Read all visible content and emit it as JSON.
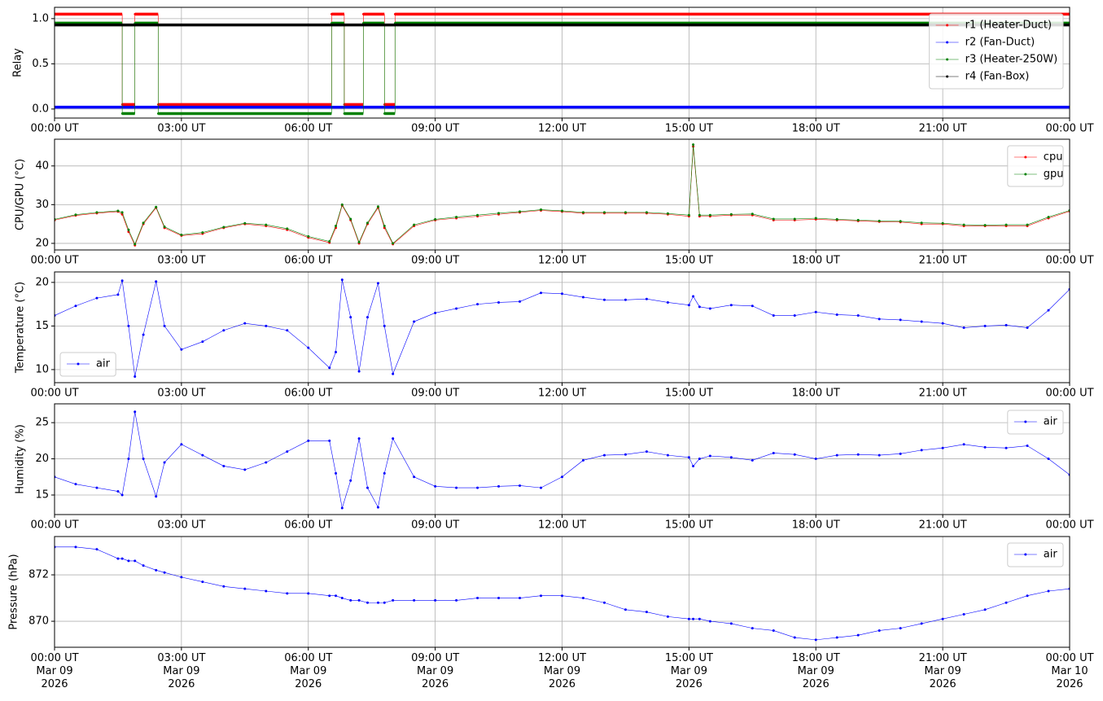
{
  "chart_data": [
    {
      "type": "step",
      "ylabel": "Relay",
      "legend": "upper right",
      "grid": true,
      "xlim": [
        0,
        24
      ],
      "ylim": [
        -0.1,
        1.125
      ],
      "yticks": [
        {
          "value": 0,
          "label": "0.0"
        },
        {
          "value": 0.5,
          "label": "0.5"
        },
        {
          "value": 1,
          "label": "1.0"
        }
      ],
      "xticks": [
        {
          "value": 0,
          "label": "00:00 UT"
        },
        {
          "value": 3,
          "label": "03:00 UT"
        },
        {
          "value": 6,
          "label": "06:00 UT"
        },
        {
          "value": 9,
          "label": "09:00 UT"
        },
        {
          "value": 12,
          "label": "12:00 UT"
        },
        {
          "value": 15,
          "label": "15:00 UT"
        },
        {
          "value": 18,
          "label": "18:00 UT"
        },
        {
          "value": 21,
          "label": "21:00 UT"
        },
        {
          "value": 24,
          "label": "00:00 UT"
        }
      ],
      "x": [
        0,
        1.6,
        1.9,
        2.45,
        6.55,
        6.85,
        7.3,
        7.8,
        8.05,
        24
      ],
      "series": [
        {
          "name": "r1 (Heater-Duct)",
          "color": "#ff0000",
          "values": [
            1.05,
            0.05,
            1.05,
            0.05,
            1.05,
            0.05,
            1.05,
            0.05,
            1.05,
            1.05
          ]
        },
        {
          "name": "r2 (Fan-Duct)",
          "color": "#0000ff",
          "values": [
            0.02,
            0.02,
            0.02,
            0.02,
            0.02,
            0.02,
            0.02,
            0.02,
            0.02,
            0.02
          ]
        },
        {
          "name": "r3 (Heater-250W)",
          "color": "#008000",
          "values": [
            0.95,
            -0.05,
            0.95,
            -0.05,
            0.95,
            -0.05,
            0.95,
            -0.05,
            0.95,
            0.95
          ]
        },
        {
          "name": "r4 (Fan-Box)",
          "color": "#000000",
          "values": [
            0.93,
            0.93,
            0.93,
            0.93,
            0.93,
            0.93,
            0.93,
            0.93,
            0.93,
            0.93
          ]
        }
      ]
    },
    {
      "type": "line",
      "ylabel": "CPU/GPU (°C)",
      "legend": "upper right",
      "grid": true,
      "xlim": [
        0,
        24
      ],
      "ylim": [
        18.3,
        46.9
      ],
      "yticks": [
        20,
        30,
        40
      ],
      "xticks": [
        {
          "value": 0,
          "label": "00:00 UT"
        },
        {
          "value": 3,
          "label": "03:00 UT"
        },
        {
          "value": 6,
          "label": "06:00 UT"
        },
        {
          "value": 9,
          "label": "09:00 UT"
        },
        {
          "value": 12,
          "label": "12:00 UT"
        },
        {
          "value": 15,
          "label": "15:00 UT"
        },
        {
          "value": 18,
          "label": "18:00 UT"
        },
        {
          "value": 21,
          "label": "21:00 UT"
        },
        {
          "value": 24,
          "label": "00:00 UT"
        }
      ],
      "x": [
        0,
        0.5,
        1,
        1.5,
        1.6,
        1.75,
        1.9,
        2.1,
        2.4,
        2.6,
        3,
        3.5,
        4,
        4.5,
        5,
        5.5,
        6,
        6.5,
        6.65,
        6.8,
        7,
        7.2,
        7.4,
        7.65,
        7.8,
        8,
        8.5,
        9,
        9.5,
        10,
        10.5,
        11,
        11.5,
        12,
        12.5,
        13,
        13.5,
        14,
        14.5,
        15,
        15.1,
        15.25,
        15.5,
        16,
        16.5,
        17,
        17.5,
        18,
        18.5,
        19,
        19.5,
        20,
        20.5,
        21,
        21.5,
        22,
        22.5,
        23,
        23.5,
        24
      ],
      "series": [
        {
          "name": "cpu",
          "color": "#ff0000",
          "values": [
            26,
            27.2,
            27.8,
            28.2,
            27.5,
            23,
            19.5,
            25,
            29.2,
            24,
            22,
            22.5,
            24,
            25,
            24.5,
            23.5,
            21.5,
            20.2,
            24,
            29.8,
            26,
            20,
            25,
            29.2,
            24,
            19.8,
            24.5,
            26,
            26.5,
            27,
            27.5,
            28,
            28.5,
            28.2,
            27.8,
            27.8,
            27.8,
            27.8,
            27.5,
            27,
            45,
            27,
            27,
            27.3,
            27.3,
            26,
            26,
            26.2,
            26,
            25.8,
            25.6,
            25.5,
            25,
            25,
            24.5,
            24.5,
            24.5,
            24.5,
            26.5,
            28.3
          ]
        },
        {
          "name": "gpu",
          "color": "#008000",
          "values": [
            26.2,
            27.4,
            28,
            28.4,
            28,
            23.5,
            19.8,
            25.3,
            29.4,
            24.3,
            22.2,
            22.8,
            24.2,
            25.2,
            24.8,
            23.8,
            21.8,
            20.5,
            24.5,
            30,
            26.3,
            20.3,
            25.3,
            29.5,
            24.5,
            20,
            24.8,
            26.2,
            26.8,
            27.3,
            27.8,
            28.2,
            28.7,
            28.4,
            28,
            28,
            28,
            28,
            27.7,
            27.3,
            45.5,
            27.3,
            27.3,
            27.5,
            27.6,
            26.3,
            26.3,
            26.5,
            26.2,
            26,
            25.8,
            25.7,
            25.3,
            25.2,
            24.8,
            24.7,
            24.8,
            24.8,
            26.8,
            28.5
          ]
        }
      ]
    },
    {
      "type": "line",
      "ylabel": "Temperature (°C)",
      "legend": "lower left",
      "grid": true,
      "xlim": [
        0,
        24
      ],
      "ylim": [
        8.5,
        21.2
      ],
      "yticks": [
        10,
        15,
        20
      ],
      "xticks": [
        {
          "value": 0,
          "label": "00:00 UT"
        },
        {
          "value": 3,
          "label": "03:00 UT"
        },
        {
          "value": 6,
          "label": "06:00 UT"
        },
        {
          "value": 9,
          "label": "09:00 UT"
        },
        {
          "value": 12,
          "label": "12:00 UT"
        },
        {
          "value": 15,
          "label": "15:00 UT"
        },
        {
          "value": 18,
          "label": "18:00 UT"
        },
        {
          "value": 21,
          "label": "21:00 UT"
        },
        {
          "value": 24,
          "label": "00:00 UT"
        }
      ],
      "x": [
        0,
        0.5,
        1,
        1.5,
        1.6,
        1.75,
        1.9,
        2.1,
        2.4,
        2.6,
        3,
        3.5,
        4,
        4.5,
        5,
        5.5,
        6,
        6.5,
        6.65,
        6.8,
        7,
        7.2,
        7.4,
        7.65,
        7.8,
        8,
        8.5,
        9,
        9.5,
        10,
        10.5,
        11,
        11.5,
        12,
        12.5,
        13,
        13.5,
        14,
        14.5,
        15,
        15.1,
        15.25,
        15.5,
        16,
        16.5,
        17,
        17.5,
        18,
        18.5,
        19,
        19.5,
        20,
        20.5,
        21,
        21.5,
        22,
        22.5,
        23,
        23.5,
        24
      ],
      "series": [
        {
          "name": "air",
          "color": "#0000ff",
          "values": [
            16.2,
            17.3,
            18.2,
            18.6,
            20.2,
            15,
            9.2,
            14,
            20.1,
            15,
            12.3,
            13.2,
            14.5,
            15.3,
            15,
            14.5,
            12.5,
            10.2,
            12,
            20.3,
            16,
            9.8,
            16,
            19.9,
            15,
            9.5,
            15.5,
            16.5,
            17,
            17.5,
            17.7,
            17.8,
            18.8,
            18.7,
            18.3,
            18,
            18,
            18.1,
            17.7,
            17.4,
            18.4,
            17.2,
            17,
            17.4,
            17.3,
            16.2,
            16.2,
            16.6,
            16.3,
            16.2,
            15.8,
            15.7,
            15.5,
            15.3,
            14.8,
            15,
            15.1,
            14.8,
            16.8,
            19.2
          ]
        }
      ]
    },
    {
      "type": "line",
      "ylabel": "Humidity (%)",
      "legend": "upper right",
      "grid": true,
      "xlim": [
        0,
        24
      ],
      "ylim": [
        12.3,
        27.6
      ],
      "yticks": [
        15,
        20,
        25
      ],
      "xticks": [
        {
          "value": 0,
          "label": "00:00 UT"
        },
        {
          "value": 3,
          "label": "03:00 UT"
        },
        {
          "value": 6,
          "label": "06:00 UT"
        },
        {
          "value": 9,
          "label": "09:00 UT"
        },
        {
          "value": 12,
          "label": "12:00 UT"
        },
        {
          "value": 15,
          "label": "15:00 UT"
        },
        {
          "value": 18,
          "label": "18:00 UT"
        },
        {
          "value": 21,
          "label": "21:00 UT"
        },
        {
          "value": 24,
          "label": "00:00 UT"
        }
      ],
      "x": [
        0,
        0.5,
        1,
        1.5,
        1.6,
        1.75,
        1.9,
        2.1,
        2.4,
        2.6,
        3,
        3.5,
        4,
        4.5,
        5,
        5.5,
        6,
        6.5,
        6.65,
        6.8,
        7,
        7.2,
        7.4,
        7.65,
        7.8,
        8,
        8.5,
        9,
        9.5,
        10,
        10.5,
        11,
        11.5,
        12,
        12.5,
        13,
        13.5,
        14,
        14.5,
        15,
        15.1,
        15.25,
        15.5,
        16,
        16.5,
        17,
        17.5,
        18,
        18.5,
        19,
        19.5,
        20,
        20.5,
        21,
        21.5,
        22,
        22.5,
        23,
        23.5,
        24
      ],
      "series": [
        {
          "name": "air",
          "color": "#0000ff",
          "values": [
            17.5,
            16.5,
            16,
            15.5,
            15,
            20,
            26.5,
            20,
            14.8,
            19.5,
            22,
            20.5,
            19,
            18.5,
            19.5,
            21,
            22.5,
            22.5,
            18,
            13.2,
            17,
            22.8,
            16,
            13.3,
            18,
            22.8,
            17.5,
            16.2,
            16,
            16,
            16.2,
            16.3,
            16,
            17.5,
            19.8,
            20.5,
            20.6,
            21,
            20.5,
            20.2,
            19,
            20,
            20.4,
            20.2,
            19.8,
            20.8,
            20.6,
            20,
            20.5,
            20.6,
            20.5,
            20.7,
            21.2,
            21.5,
            22,
            21.6,
            21.5,
            21.8,
            20,
            17.8
          ]
        }
      ]
    },
    {
      "type": "line",
      "ylabel": "Pressure (hPa)",
      "legend": "upper right",
      "grid": true,
      "xlim": [
        0,
        24
      ],
      "ylim": [
        868.88,
        873.65
      ],
      "yticks": [
        870,
        872
      ],
      "xticks": [
        {
          "value": 0,
          "label": "00:00 UT\nMar 09\n2026"
        },
        {
          "value": 3,
          "label": "03:00 UT\nMar 09\n2026"
        },
        {
          "value": 6,
          "label": "06:00 UT\nMar 09\n2026"
        },
        {
          "value": 9,
          "label": "09:00 UT\nMar 09\n2026"
        },
        {
          "value": 12,
          "label": "12:00 UT\nMar 09\n2026"
        },
        {
          "value": 15,
          "label": "15:00 UT\nMar 09\n2026"
        },
        {
          "value": 18,
          "label": "18:00 UT\nMar 09\n2026"
        },
        {
          "value": 21,
          "label": "21:00 UT\nMar 09\n2026"
        },
        {
          "value": 24,
          "label": "00:00 UT\nMar 10\n2026"
        }
      ],
      "x": [
        0,
        0.5,
        1,
        1.5,
        1.6,
        1.75,
        1.9,
        2.1,
        2.4,
        2.6,
        3,
        3.5,
        4,
        4.5,
        5,
        5.5,
        6,
        6.5,
        6.65,
        6.8,
        7,
        7.2,
        7.4,
        7.65,
        7.8,
        8,
        8.5,
        9,
        9.5,
        10,
        10.5,
        11,
        11.5,
        12,
        12.5,
        13,
        13.5,
        14,
        14.5,
        15,
        15.1,
        15.25,
        15.5,
        16,
        16.5,
        17,
        17.5,
        18,
        18.5,
        19,
        19.5,
        20,
        20.5,
        21,
        21.5,
        22,
        22.5,
        23,
        23.5,
        24
      ],
      "series": [
        {
          "name": "air",
          "color": "#0000ff",
          "values": [
            873.2,
            873.2,
            873.1,
            872.7,
            872.7,
            872.6,
            872.6,
            872.4,
            872.2,
            872.1,
            871.9,
            871.7,
            871.5,
            871.4,
            871.3,
            871.2,
            871.2,
            871.1,
            871.1,
            871,
            870.9,
            870.9,
            870.8,
            870.8,
            870.8,
            870.9,
            870.9,
            870.9,
            870.9,
            871,
            871,
            871,
            871.1,
            871.1,
            871,
            870.8,
            870.5,
            870.4,
            870.2,
            870.1,
            870.1,
            870.1,
            870,
            869.9,
            869.7,
            869.6,
            869.3,
            869.2,
            869.3,
            869.4,
            869.6,
            869.7,
            869.9,
            870.1,
            870.3,
            870.5,
            870.8,
            871.1,
            871.3,
            871.4
          ]
        }
      ]
    }
  ]
}
